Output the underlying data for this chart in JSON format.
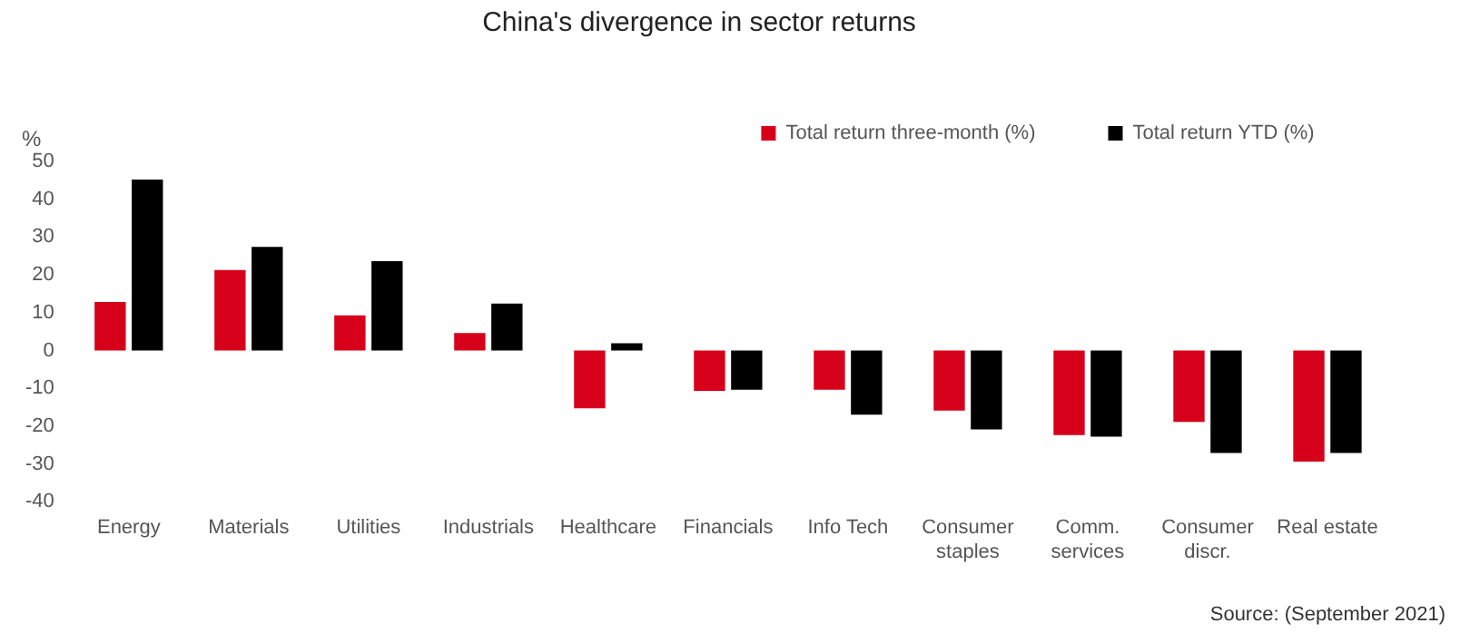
{
  "chart_data": {
    "type": "bar",
    "title": "China's divergence in sector returns",
    "ylabel": "%",
    "categories": [
      "Energy",
      "Materials",
      "Utilities",
      "Industrials",
      "Healthcare",
      "Financials",
      "Info Tech",
      "Consumer staples",
      "Comm. services",
      "Consumer discr.",
      "Real estate"
    ],
    "series": [
      {
        "name": "Total return three-month (%)",
        "color": "#d7001a",
        "values": [
          12.8,
          21.3,
          9.3,
          4.6,
          -15.3,
          -10.7,
          -10.4,
          -15.9,
          -22.4,
          -18.9,
          -29.4
        ]
      },
      {
        "name": "Total return YTD (%)",
        "color": "#000000",
        "values": [
          45.2,
          27.4,
          23.6,
          12.4,
          1.9,
          -10.4,
          -17.0,
          -20.9,
          -22.8,
          -27.1,
          -27.1
        ]
      }
    ],
    "ylim": [
      -40,
      50
    ],
    "yticks": [
      -40,
      -30,
      -20,
      -10,
      0,
      10,
      20,
      30,
      40,
      50
    ],
    "grid": false,
    "legend": "top right",
    "annotations": [
      "Source: (September 2021)"
    ]
  }
}
